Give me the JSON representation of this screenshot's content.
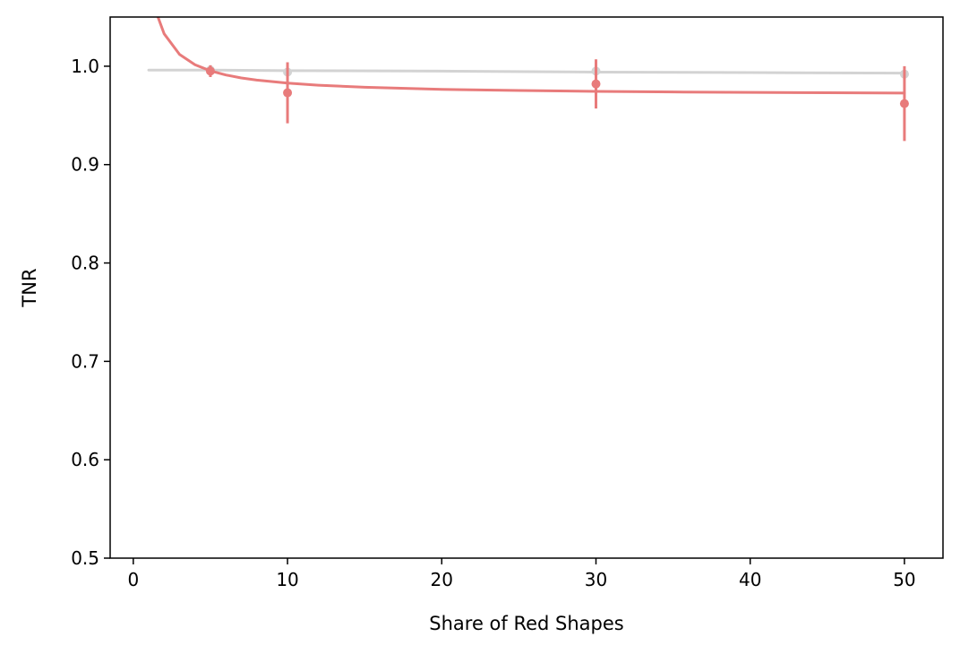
{
  "chart_data": {
    "type": "line",
    "title": "",
    "xlabel": "Share of Red Shapes",
    "ylabel": "TNR",
    "xlim": [
      -1.5,
      52.5
    ],
    "ylim": [
      0.5,
      1.05
    ],
    "xticks": [
      0,
      10,
      20,
      30,
      40,
      50
    ],
    "xtick_labels": [
      "0",
      "10",
      "20",
      "30",
      "40",
      "50"
    ],
    "yticks": [
      0.5,
      0.6,
      0.7,
      0.8,
      0.9,
      1.0
    ],
    "ytick_labels": [
      "0.5",
      "0.6",
      "0.7",
      "0.8",
      "0.9",
      "1.0"
    ],
    "grid": false,
    "legend": "none",
    "series": [
      {
        "color": "#d3d3d3",
        "points": [
          {
            "x": 5,
            "y": 0.996,
            "err": 0.004
          },
          {
            "x": 10,
            "y": 0.994,
            "err": 0.003
          },
          {
            "x": 30,
            "y": 0.995,
            "err": 0.003
          },
          {
            "x": 50,
            "y": 0.992,
            "err": 0.003
          }
        ],
        "fit": {
          "x": [
            1,
            5,
            10,
            20,
            30,
            40,
            50
          ],
          "y": [
            0.996,
            0.996,
            0.9955,
            0.995,
            0.994,
            0.9935,
            0.993
          ]
        }
      },
      {
        "color": "#e87b7b",
        "points": [
          {
            "x": 5,
            "y": 0.995,
            "err": 0.006
          },
          {
            "x": 10,
            "y": 0.973,
            "err": 0.031
          },
          {
            "x": 30,
            "y": 0.982,
            "err": 0.025
          },
          {
            "x": 50,
            "y": 0.962,
            "err": 0.038
          }
        ],
        "fit": {
          "x": [
            1.6,
            2,
            3,
            4,
            5,
            6,
            7,
            8,
            10,
            12,
            15,
            20,
            25,
            30,
            35,
            40,
            45,
            50
          ],
          "y": [
            1.05,
            1.033,
            1.012,
            1.0015,
            0.9953,
            0.9911,
            0.9881,
            0.9859,
            0.9828,
            0.9807,
            0.9786,
            0.9765,
            0.9753,
            0.9744,
            0.9738,
            0.9734,
            0.973,
            0.9727
          ]
        }
      }
    ]
  }
}
